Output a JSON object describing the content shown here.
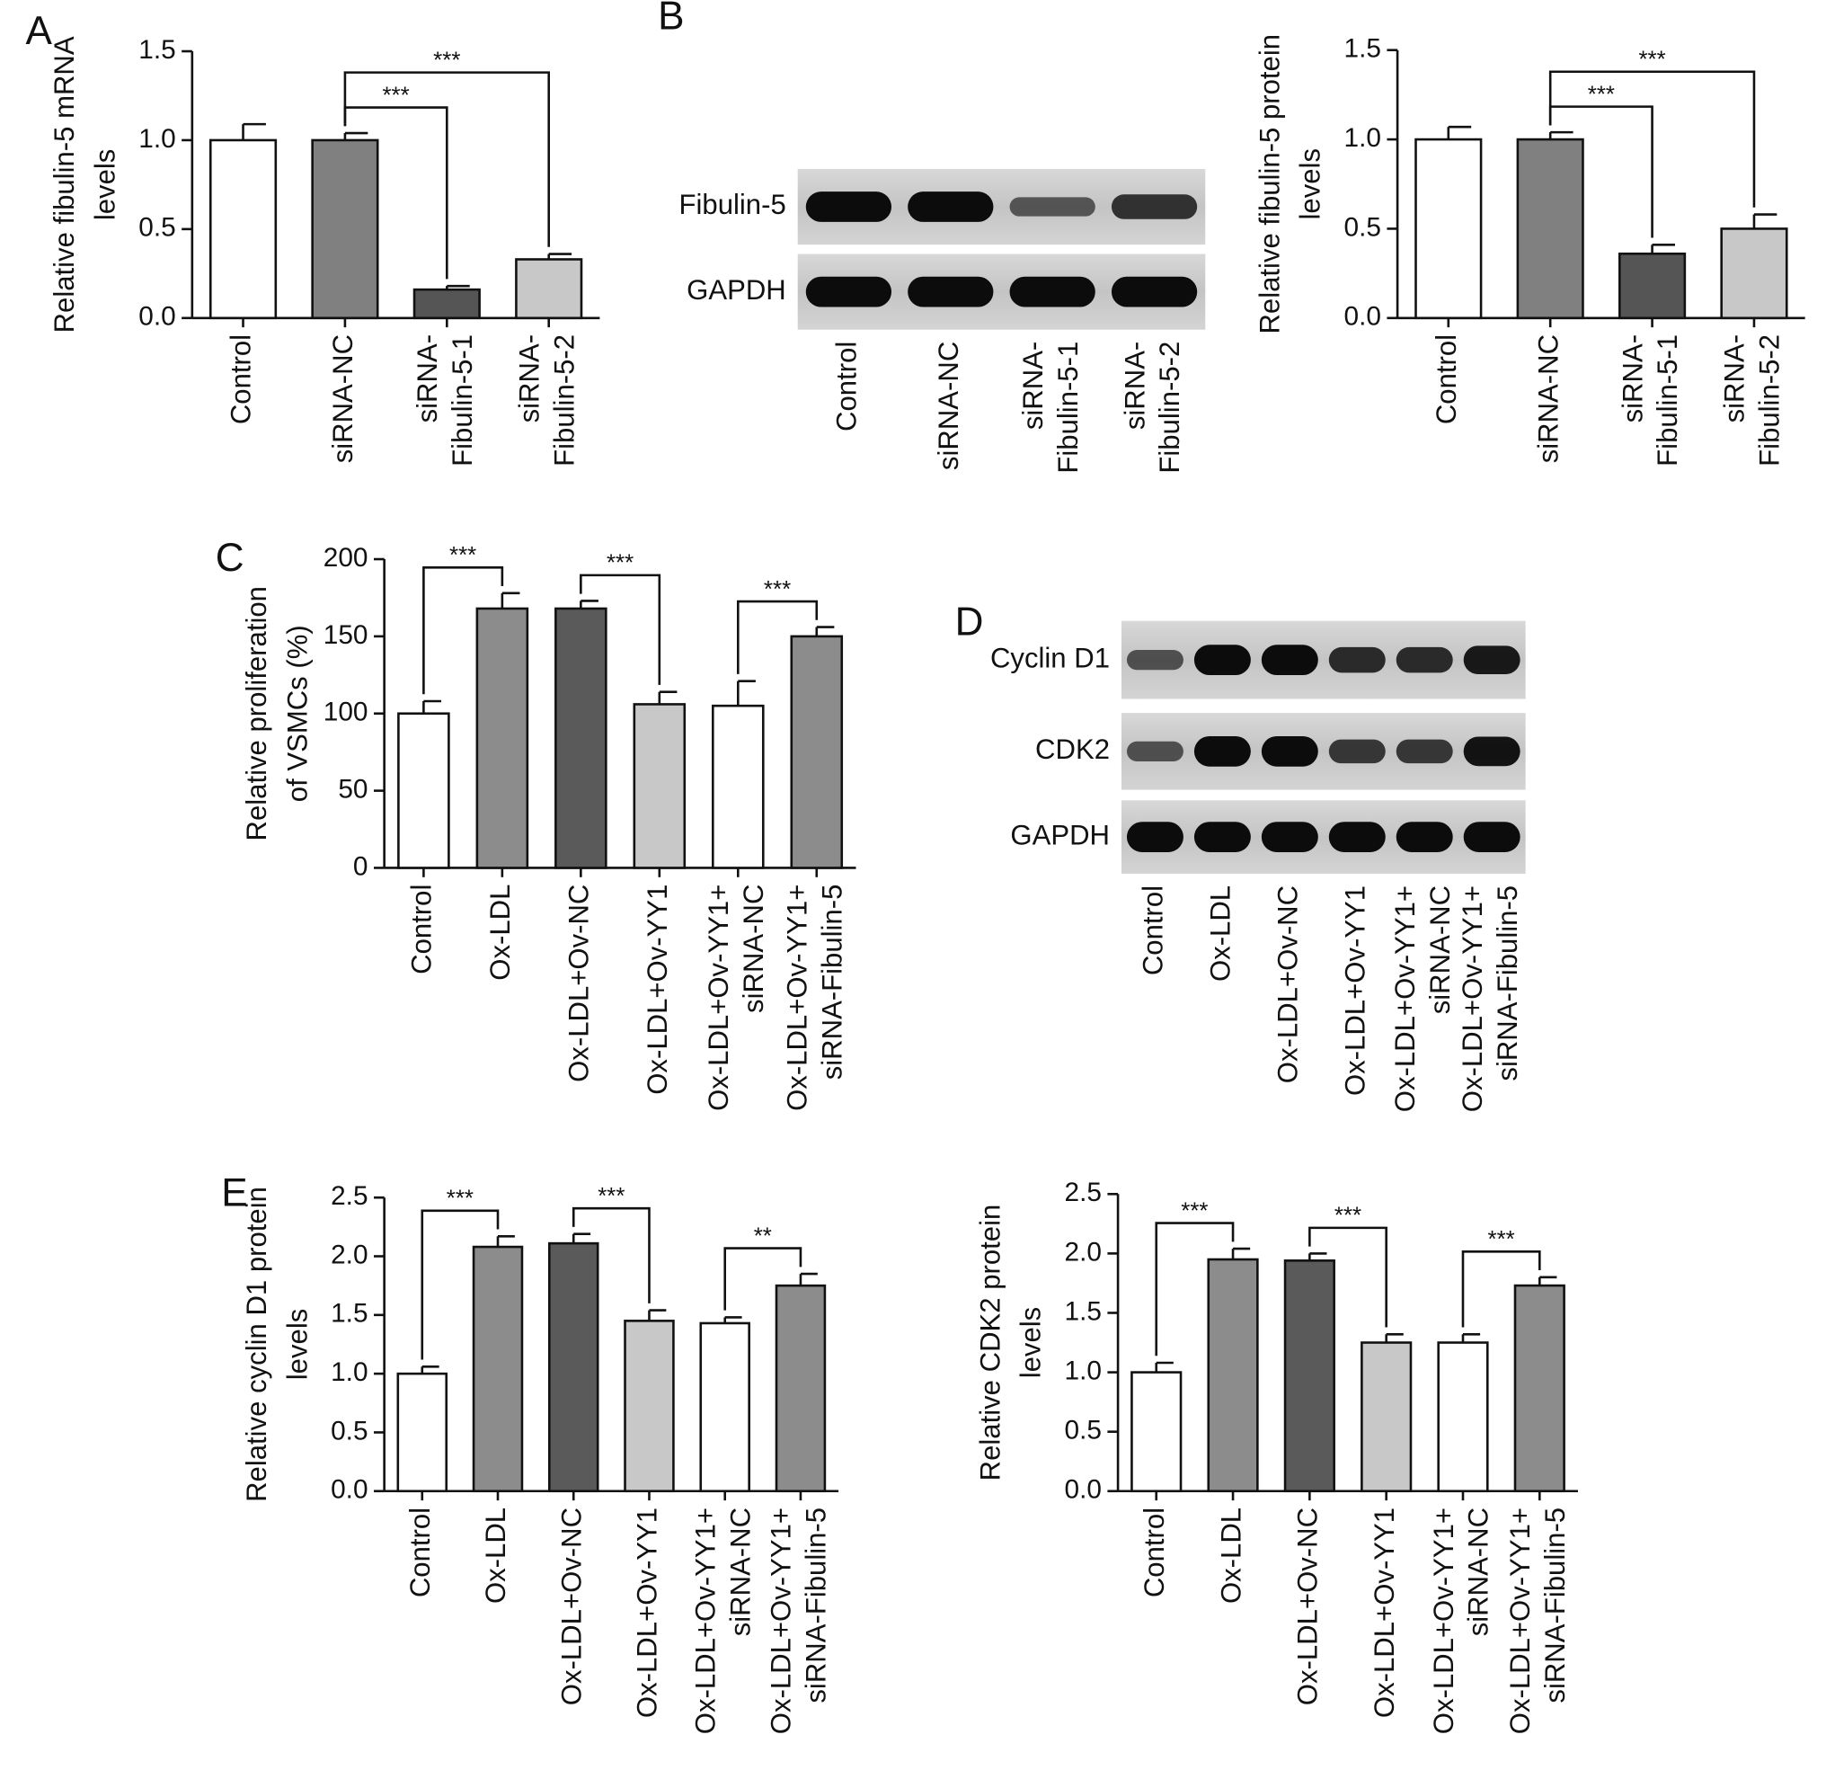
{
  "chart_data": [
    {
      "type": "bar",
      "panel": "A",
      "ylabel": [
        "Relative  fibulin-5 mRNA",
        "levels"
      ],
      "categories": [
        [
          "Control"
        ],
        [
          "siRNA-NC"
        ],
        [
          "siRNA-",
          "Fibulin-5-1"
        ],
        [
          "siRNA-",
          "Fibulin-5-2"
        ]
      ],
      "values": [
        1.0,
        1.0,
        0.16,
        0.33
      ],
      "errors": [
        0.09,
        0.04,
        0.02,
        0.03
      ],
      "colors": [
        "#ffffff",
        "#808080",
        "#555555",
        "#c8c8c8"
      ],
      "ylim": [
        0,
        1.5
      ],
      "yticks": [
        {
          "value": 0,
          "label": "0.0"
        },
        0.5,
        {
          "value": 1,
          "label": "1.0"
        },
        1.5
      ],
      "annotations": [
        {
          "text": "***",
          "from": 1,
          "to": 2
        },
        {
          "text": "***",
          "from": 1,
          "to": 3
        }
      ]
    },
    {
      "type": "bar",
      "ylabel": [
        "Relative  fibulin-5 protein",
        "levels"
      ],
      "categories": [
        [
          "Control"
        ],
        [
          "siRNA-NC"
        ],
        [
          "siRNA-",
          "Fibulin-5-1"
        ],
        [
          "siRNA-",
          "Fibulin-5-2"
        ]
      ],
      "values": [
        1.0,
        1.0,
        0.36,
        0.5
      ],
      "errors": [
        0.07,
        0.04,
        0.05,
        0.08
      ],
      "colors": [
        "#ffffff",
        "#808080",
        "#555555",
        "#c8c8c8"
      ],
      "ylim": [
        0,
        1.5
      ],
      "yticks": [
        {
          "value": 0,
          "label": "0.0"
        },
        0.5,
        {
          "value": 1,
          "label": "1.0"
        },
        1.5
      ],
      "annotations": [
        {
          "text": "***",
          "from": 1,
          "to": 2
        },
        {
          "text": "***",
          "from": 1,
          "to": 3
        }
      ]
    },
    {
      "type": "bar",
      "panel": "C",
      "ylabel": [
        "Relative proliferation",
        "of VSMCs (%)"
      ],
      "categories": [
        [
          "Control"
        ],
        [
          "Ox-LDL"
        ],
        [
          "Ox-LDL+Ov-NC"
        ],
        [
          "Ox-LDL+Ov-YY1"
        ],
        [
          "Ox-LDL+Ov-YY1+",
          "siRNA-NC"
        ],
        [
          "Ox-LDL+Ov-YY1+",
          "siRNA-Fibulin-5"
        ]
      ],
      "values": [
        100,
        168,
        168,
        106,
        105,
        150
      ],
      "errors": [
        8,
        10,
        5,
        8,
        16,
        6
      ],
      "colors": [
        "#ffffff",
        "#8c8c8c",
        "#5a5a5a",
        "#c8c8c8",
        "#ffffff",
        "#8c8c8c"
      ],
      "ylim": [
        0,
        200
      ],
      "yticks": [
        0,
        50,
        100,
        150,
        200
      ],
      "annotations": [
        {
          "text": "***",
          "from": 0,
          "to": 1
        },
        {
          "text": "***",
          "from": 2,
          "to": 3
        },
        {
          "text": "***",
          "from": 4,
          "to": 5
        }
      ]
    },
    {
      "type": "bar",
      "panel": "E",
      "ylabel": [
        "Relative  cyclin D1 protein",
        "levels"
      ],
      "categories": [
        [
          "Control"
        ],
        [
          "Ox-LDL"
        ],
        [
          "Ox-LDL+Ov-NC"
        ],
        [
          "Ox-LDL+Ov-YY1"
        ],
        [
          "Ox-LDL+Ov-YY1+",
          "siRNA-NC"
        ],
        [
          "Ox-LDL+Ov-YY1+",
          "siRNA-Fibulin-5"
        ]
      ],
      "values": [
        1.0,
        2.08,
        2.11,
        1.45,
        1.43,
        1.75
      ],
      "errors": [
        0.06,
        0.09,
        0.08,
        0.09,
        0.05,
        0.1
      ],
      "colors": [
        "#ffffff",
        "#8c8c8c",
        "#5a5a5a",
        "#c8c8c8",
        "#ffffff",
        "#8c8c8c"
      ],
      "ylim": [
        0,
        2.5
      ],
      "yticks": [
        {
          "value": 0,
          "label": "0.0"
        },
        0.5,
        {
          "value": 1,
          "label": "1.0"
        },
        1.5,
        {
          "value": 2,
          "label": "2.0"
        },
        2.5
      ],
      "annotations": [
        {
          "text": "***",
          "from": 0,
          "to": 1
        },
        {
          "text": "***",
          "from": 2,
          "to": 3
        },
        {
          "text": "**",
          "from": 4,
          "to": 5
        }
      ]
    },
    {
      "type": "bar",
      "ylabel": [
        "Relative CDK2 protein",
        "levels"
      ],
      "categories": [
        [
          "Control"
        ],
        [
          "Ox-LDL"
        ],
        [
          "Ox-LDL+Ov-NC"
        ],
        [
          "Ox-LDL+Ov-YY1"
        ],
        [
          "Ox-LDL+Ov-YY1+",
          "siRNA-NC"
        ],
        [
          "Ox-LDL+Ov-YY1+",
          "siRNA-Fibulin-5"
        ]
      ],
      "values": [
        1.0,
        1.95,
        1.94,
        1.25,
        1.25,
        1.73
      ],
      "errors": [
        0.08,
        0.09,
        0.06,
        0.07,
        0.07,
        0.07
      ],
      "colors": [
        "#ffffff",
        "#8c8c8c",
        "#5a5a5a",
        "#c8c8c8",
        "#ffffff",
        "#8c8c8c"
      ],
      "ylim": [
        0,
        2.5
      ],
      "yticks": [
        {
          "value": 0,
          "label": "0.0"
        },
        0.5,
        {
          "value": 1,
          "label": "1.0"
        },
        1.5,
        {
          "value": 2,
          "label": "2.0"
        },
        2.5
      ],
      "annotations": [
        {
          "text": "***",
          "from": 0,
          "to": 1
        },
        {
          "text": "***",
          "from": 2,
          "to": 3
        },
        {
          "text": "***",
          "from": 4,
          "to": 5
        }
      ]
    }
  ],
  "blots": [
    {
      "panel": "B",
      "rows": [
        "Fibulin-5",
        "GAPDH"
      ],
      "lanes": [
        [
          "Control"
        ],
        [
          "siRNA-NC"
        ],
        [
          "siRNA-",
          "Fibulin-5-1"
        ],
        [
          "siRNA-",
          "Fibulin-5-2"
        ]
      ]
    },
    {
      "panel": "D",
      "rows": [
        "Cyclin D1",
        "CDK2",
        "GAPDH"
      ],
      "lanes": [
        [
          "Control"
        ],
        [
          "Ox-LDL"
        ],
        [
          "Ox-LDL+Ov-NC"
        ],
        [
          "Ox-LDL+Ov-YY1"
        ],
        [
          "Ox-LDL+Ov-YY1+",
          "siRNA-NC"
        ],
        [
          "Ox-LDL+Ov-YY1+",
          "siRNA-Fibulin-5"
        ]
      ]
    }
  ]
}
